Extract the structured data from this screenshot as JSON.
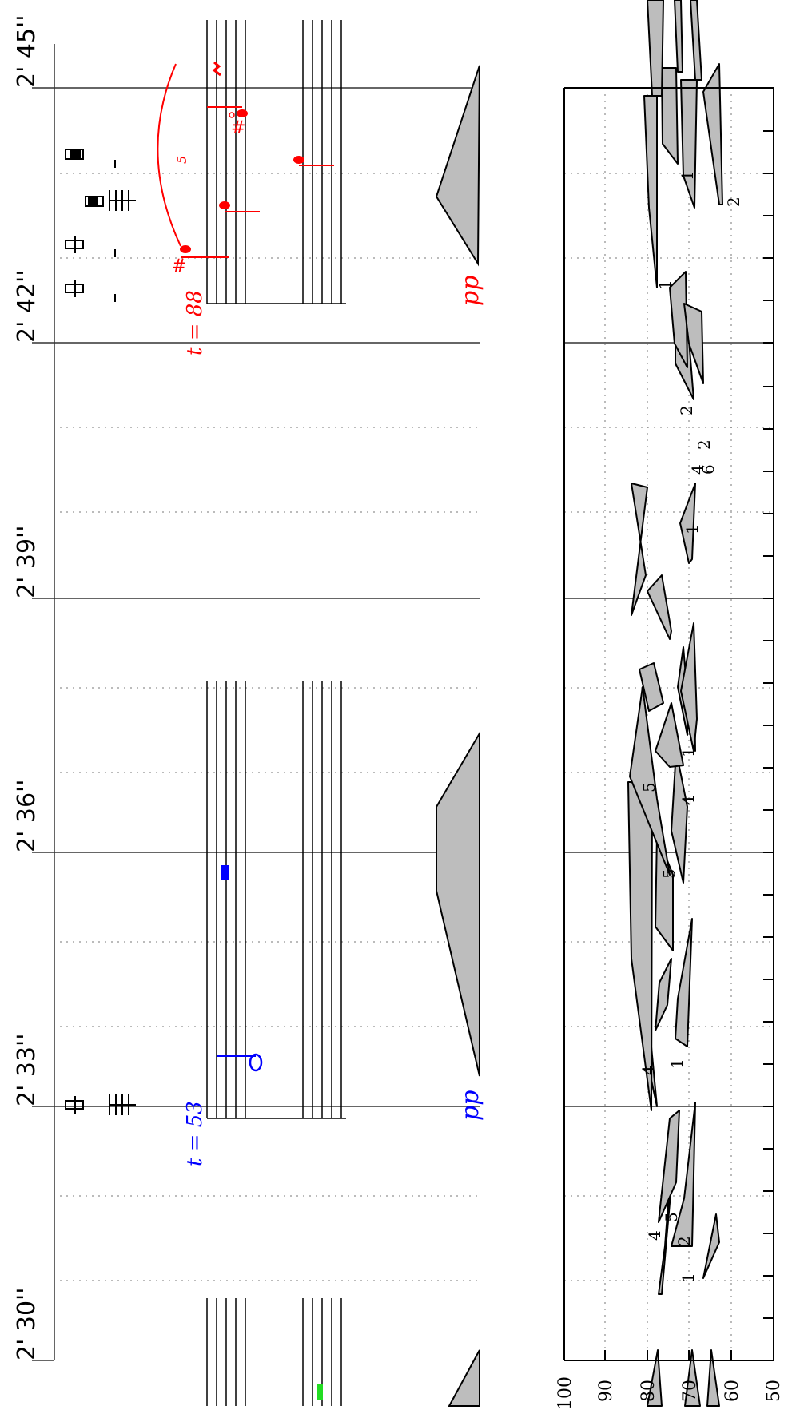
{
  "timeline": {
    "labels": [
      "2' 30''",
      "2' 33''",
      "2' 36''",
      "2' 39''",
      "2' 42''",
      "2' 45''"
    ]
  },
  "events": [
    {
      "tempo": "t = 53",
      "dynamic": "pp",
      "color": "#0000ff"
    },
    {
      "tempo": "t = 88",
      "dynamic": "pp",
      "color": "#ff0000",
      "tuplet": "5"
    }
  ],
  "plot": {
    "y_ticks": [
      "100",
      "90",
      "80",
      "70",
      "60",
      "50"
    ],
    "fingerings": [
      "1",
      "4",
      "2",
      "5",
      "4",
      "1",
      "5",
      "5",
      "4",
      "1",
      "1",
      "2",
      "4",
      "6",
      "2",
      "1",
      "2",
      "1"
    ]
  },
  "colors": {
    "green": "#22dd22",
    "blue": "#0000ff",
    "red": "#ff0000",
    "fill": "#bdbdbd"
  }
}
